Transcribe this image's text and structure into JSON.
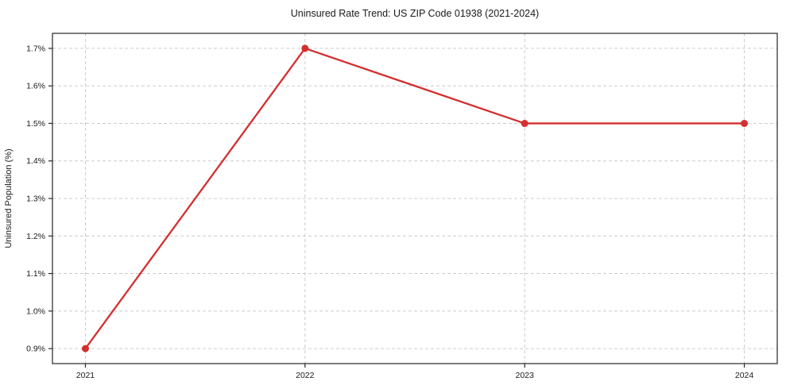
{
  "chart_data": {
    "type": "line",
    "title": "Uninsured Rate Trend: US ZIP Code 01938 (2021-2024)",
    "xlabel": "",
    "ylabel": "Uninsured Population (%)",
    "x": [
      2021,
      2022,
      2023,
      2024
    ],
    "series": [
      {
        "name": "uninsured-rate",
        "values": [
          0.9,
          1.7,
          1.5,
          1.5
        ]
      }
    ],
    "x_tick_labels": [
      "2021",
      "2022",
      "2023",
      "2024"
    ],
    "y_ticks": [
      0.9,
      1.0,
      1.1,
      1.2,
      1.3,
      1.4,
      1.5,
      1.6,
      1.7
    ],
    "y_tick_labels": [
      "0.9%",
      "1.0%",
      "1.1%",
      "1.2%",
      "1.3%",
      "1.4%",
      "1.5%",
      "1.6%",
      "1.7%"
    ],
    "xlim": [
      2020.85,
      2024.15
    ],
    "ylim": [
      0.86,
      1.74
    ],
    "grid": "dashed",
    "legend_position": "none",
    "marker": "circle"
  },
  "colors": {
    "line": "#d32f2f",
    "marker": "#d32f2f",
    "grid": "#cccccc",
    "spine": "#262626",
    "text": "#1a1a1a",
    "background": "#ffffff"
  }
}
